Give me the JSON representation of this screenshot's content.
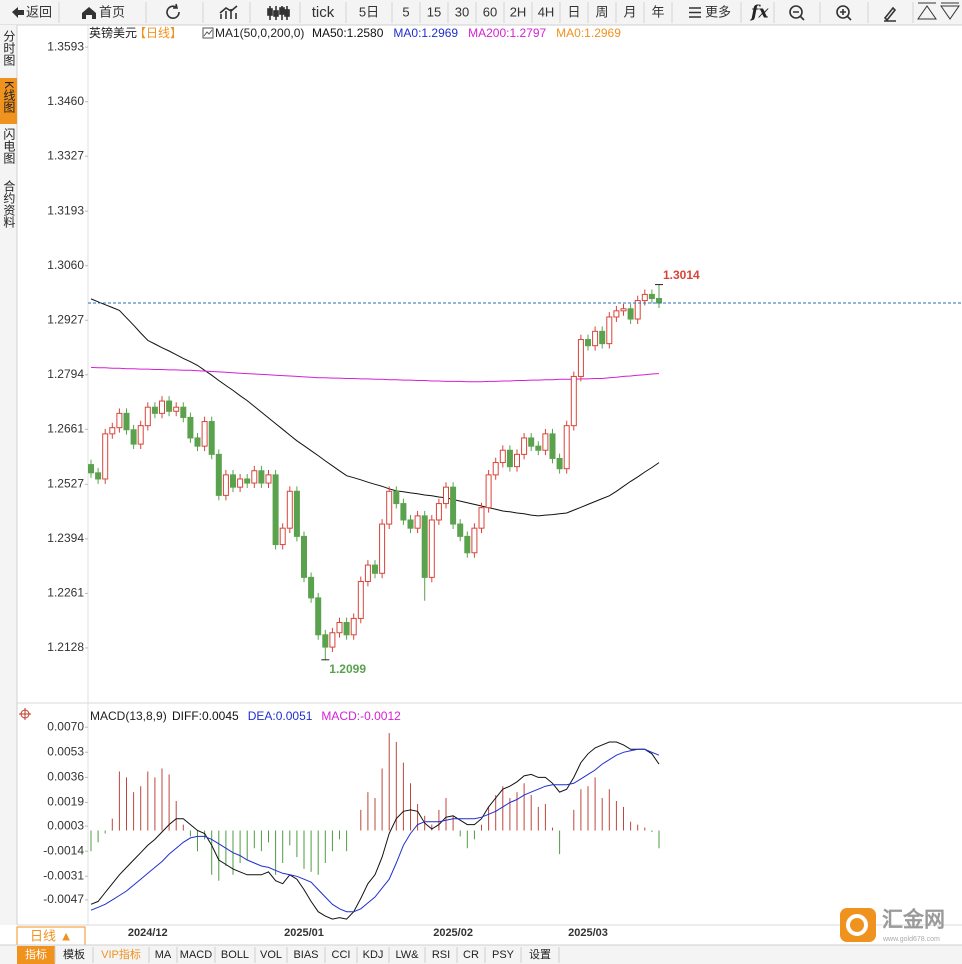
{
  "toolbar": [
    "返回",
    "首页",
    "tick",
    "5日",
    "5",
    "15",
    "30",
    "60",
    "2H",
    "4H",
    "日",
    "周",
    "月",
    "年",
    "更多"
  ],
  "sidebar": [
    "分时图",
    "K线图",
    "闪电图",
    "合约资料"
  ],
  "symbol": "英镑美元",
  "period": "【日线】",
  "period_button": "日线 ▲",
  "tabs": [
    "指标",
    "模板",
    "VIP指标",
    "MA",
    "MACD",
    "BOLL",
    "VOL",
    "BIAS",
    "CCI",
    "KDJ",
    "LW&",
    "RSI",
    "CR",
    "PSY",
    "设置"
  ],
  "watermark": {
    "name": "汇金网",
    "url": "www.gold678.com"
  },
  "chart_data": [
    {
      "type": "candlestick",
      "indicator": "MA1(50,0,200,0)",
      "legend_texts": [
        {
          "name": "MA0:1.2969",
          "color": "#1f2fd0"
        },
        {
          "name": "MA0:1.2969",
          "color": "#f0921e"
        }
      ],
      "up_color": "#d9443a",
      "down_color": "#5aa24d",
      "grid": false,
      "categories": [
        null,
        null,
        null,
        null,
        null,
        null,
        null,
        null,
        "2024/12",
        null,
        null,
        null,
        null,
        null,
        null,
        null,
        null,
        null,
        null,
        null,
        null,
        null,
        null,
        null,
        null,
        null,
        null,
        null,
        null,
        null,
        "2025/01",
        null,
        null,
        null,
        null,
        null,
        null,
        null,
        null,
        null,
        null,
        null,
        null,
        null,
        null,
        null,
        null,
        null,
        null,
        null,
        null,
        "2025/02",
        null,
        null,
        null,
        null,
        null,
        null,
        null,
        null,
        null,
        null,
        null,
        null,
        null,
        null,
        null,
        null,
        null,
        null,
        "2025/03",
        null,
        null,
        null,
        null,
        null,
        null,
        null,
        null,
        null,
        null
      ],
      "open": [
        1.2575,
        1.2555,
        1.254,
        1.265,
        1.2665,
        1.27,
        1.266,
        1.2625,
        1.267,
        1.2715,
        1.27,
        1.273,
        1.2705,
        1.2715,
        1.269,
        1.264,
        1.262,
        1.268,
        1.26,
        1.25,
        1.255,
        1.252,
        1.254,
        1.253,
        1.256,
        1.253,
        1.255,
        1.238,
        1.242,
        1.251,
        1.24,
        1.23,
        1.225,
        1.216,
        1.213,
        1.2165,
        1.219,
        1.216,
        1.22,
        1.229,
        1.233,
        1.231,
        1.243,
        1.251,
        1.248,
        1.244,
        1.242,
        1.245,
        1.23,
        1.244,
        1.248,
        1.252,
        1.243,
        1.24,
        1.236,
        1.242,
        1.247,
        1.255,
        1.258,
        1.261,
        1.257,
        1.26,
        1.264,
        1.262,
        1.261,
        1.265,
        1.259,
        1.2565,
        1.267,
        1.279,
        1.288,
        1.2865,
        1.29,
        1.287,
        1.2935,
        1.295,
        1.2955,
        1.293,
        1.2975,
        1.299,
        1.298
      ],
      "high": [
        1.2587,
        1.2567,
        1.2662,
        1.2677,
        1.2712,
        1.2712,
        1.2672,
        1.2682,
        1.2727,
        1.2727,
        1.2742,
        1.2742,
        1.2727,
        1.2727,
        1.2702,
        1.2652,
        1.2692,
        1.2692,
        1.2612,
        1.2562,
        1.2562,
        1.2552,
        1.2552,
        1.2572,
        1.2572,
        1.2562,
        1.2562,
        1.2432,
        1.2522,
        1.2522,
        1.2412,
        1.2312,
        1.2262,
        1.2172,
        1.2177,
        1.2202,
        1.2202,
        1.2212,
        1.2302,
        1.2342,
        1.2342,
        1.2442,
        1.2522,
        1.2522,
        1.2492,
        1.2452,
        1.2462,
        1.2462,
        1.2452,
        1.2492,
        1.2532,
        1.2532,
        1.2442,
        1.2412,
        1.2432,
        1.2482,
        1.2562,
        1.2592,
        1.2622,
        1.2622,
        1.2612,
        1.2652,
        1.2652,
        1.2632,
        1.2662,
        1.2662,
        1.2602,
        1.2682,
        1.2802,
        1.2892,
        1.2892,
        1.2912,
        1.2912,
        1.2947,
        1.2962,
        1.2967,
        1.2967,
        1.2987,
        1.3002,
        1.3002,
        1.3014
      ],
      "low": [
        1.2543,
        1.2528,
        1.2528,
        1.2638,
        1.2653,
        1.2648,
        1.2613,
        1.2613,
        1.2658,
        1.2688,
        1.2688,
        1.2693,
        1.2693,
        1.2678,
        1.2628,
        1.2608,
        1.2608,
        1.2588,
        1.2488,
        1.2488,
        1.2508,
        1.2508,
        1.2518,
        1.2518,
        1.2518,
        1.2518,
        1.2368,
        1.2368,
        1.2408,
        1.2388,
        1.2288,
        1.2238,
        1.2148,
        1.2099,
        1.2118,
        1.2153,
        1.2148,
        1.2148,
        1.2188,
        1.2278,
        1.2298,
        1.2298,
        1.2418,
        1.2468,
        1.2428,
        1.2408,
        1.2408,
        1.2243,
        1.2288,
        1.2428,
        1.2468,
        1.2418,
        1.2388,
        1.2348,
        1.2348,
        1.2408,
        1.2458,
        1.2538,
        1.2568,
        1.2558,
        1.2558,
        1.2588,
        1.2608,
        1.2598,
        1.2598,
        1.2578,
        1.2553,
        1.2553,
        1.2658,
        1.2778,
        1.2853,
        1.2853,
        1.2858,
        1.2858,
        1.2923,
        1.2938,
        1.2918,
        1.2918,
        1.2963,
        1.2968,
        1.2957
      ],
      "close": [
        1.2555,
        1.254,
        1.265,
        1.2665,
        1.27,
        1.266,
        1.2625,
        1.267,
        1.2715,
        1.27,
        1.273,
        1.2705,
        1.2715,
        1.269,
        1.264,
        1.262,
        1.268,
        1.26,
        1.25,
        1.255,
        1.252,
        1.254,
        1.253,
        1.256,
        1.253,
        1.255,
        1.238,
        1.242,
        1.251,
        1.24,
        1.23,
        1.225,
        1.216,
        1.213,
        1.2165,
        1.219,
        1.216,
        1.22,
        1.229,
        1.233,
        1.231,
        1.243,
        1.251,
        1.248,
        1.244,
        1.242,
        1.245,
        1.23,
        1.244,
        1.248,
        1.252,
        1.243,
        1.24,
        1.236,
        1.242,
        1.247,
        1.255,
        1.258,
        1.261,
        1.257,
        1.26,
        1.264,
        1.262,
        1.261,
        1.265,
        1.259,
        1.2565,
        1.267,
        1.279,
        1.288,
        1.2865,
        1.29,
        1.287,
        1.2935,
        1.295,
        1.2955,
        1.293,
        1.2975,
        1.299,
        1.298,
        1.2969
      ],
      "series": [
        {
          "name": "MA50:1.2580",
          "color": "#111111",
          "values": [
            1.2979,
            1.2972,
            1.2965,
            1.2958,
            1.2951,
            1.2933,
            1.2915,
            1.2896,
            1.2878,
            1.2869,
            1.286,
            1.2852,
            1.2843,
            1.2834,
            1.2826,
            1.2817,
            1.2805,
            1.2793,
            1.278,
            1.2768,
            1.2756,
            1.2743,
            1.2731,
            1.2717,
            1.2703,
            1.2689,
            1.2675,
            1.2661,
            1.2647,
            1.2633,
            1.2621,
            1.2609,
            1.2597,
            1.2584,
            1.2572,
            1.256,
            1.2548,
            1.2543,
            1.2538,
            1.2532,
            1.2527,
            1.2522,
            1.2516,
            1.2511,
            1.2509,
            1.2506,
            1.2504,
            1.2501,
            1.2499,
            1.2496,
            1.2494,
            1.249,
            1.2486,
            1.2482,
            1.2478,
            1.2474,
            1.247,
            1.2466,
            1.2462,
            1.246,
            1.2457,
            1.2455,
            1.2452,
            1.245,
            1.2452,
            1.2453,
            1.2455,
            1.2457,
            1.2464,
            1.2471,
            1.2478,
            1.2485,
            1.2492,
            1.2499,
            1.251,
            1.2522,
            1.2534,
            1.2545,
            1.2557,
            1.2568,
            1.258
          ]
        },
        {
          "name": "MA200:1.2797",
          "color": "#d61fd6",
          "values": [
            1.2812,
            1.2811,
            1.2811,
            1.281,
            1.281,
            1.2809,
            1.2809,
            1.2808,
            1.2808,
            1.2807,
            1.2807,
            1.2806,
            1.2806,
            1.2805,
            1.2805,
            1.2804,
            1.2803,
            1.2802,
            1.2801,
            1.28,
            1.2799,
            1.2798,
            1.2797,
            1.2796,
            1.2795,
            1.2794,
            1.2793,
            1.2792,
            1.2791,
            1.279,
            1.2789,
            1.2788,
            1.2787,
            1.2787,
            1.2786,
            1.2786,
            1.2785,
            1.2785,
            1.2784,
            1.2784,
            1.2783,
            1.2783,
            1.2782,
            1.2782,
            1.2781,
            1.2781,
            1.278,
            1.278,
            1.2779,
            1.2779,
            1.2778,
            1.2778,
            1.2778,
            1.2777,
            1.2777,
            1.2777,
            1.2778,
            1.2778,
            1.2779,
            1.2779,
            1.278,
            1.278,
            1.2781,
            1.2781,
            1.2782,
            1.2782,
            1.2783,
            1.2783,
            1.2783,
            1.2784,
            1.2784,
            1.2785,
            1.2785,
            1.2787,
            1.2788,
            1.279,
            1.2791,
            1.2793,
            1.2794,
            1.2796,
            1.2797
          ]
        }
      ],
      "ylim": [
        1.2001,
        1.3647
      ],
      "yticks": [
        1.3593,
        {
          "value": 1.346,
          "label": "1.3460"
        },
        1.3327,
        1.3193,
        {
          "value": 1.306,
          "label": "1.3060"
        },
        1.2927,
        1.2794,
        1.2661,
        1.2527,
        1.2394,
        1.2261,
        1.2128
      ]
    },
    {
      "type": "macd",
      "title": "MACD(13,8,9)",
      "grid": false,
      "series": [
        {
          "name": "DIFF:0.0045",
          "color": "#111111",
          "values": [
            -0.005,
            -0.0048,
            -0.0042,
            -0.0036,
            -0.003,
            -0.0025,
            -0.002,
            -0.0015,
            -0.001,
            -0.0006,
            -0.0001,
            0.0004,
            0.0008,
            0.0008,
            0.0004,
            0.0,
            -0.0002,
            -0.001,
            -0.002,
            -0.0023,
            -0.0026,
            -0.0028,
            -0.003,
            -0.003,
            -0.003,
            -0.0028,
            -0.0034,
            -0.0036,
            -0.003,
            -0.0033,
            -0.004,
            -0.0048,
            -0.0055,
            -0.0058,
            -0.006,
            -0.0059,
            -0.006,
            -0.0055,
            -0.0046,
            -0.0036,
            -0.003,
            -0.0018,
            -0.0002,
            0.0008,
            0.0013,
            0.0014,
            0.0013,
            0.0005,
            0.0001,
            0.0004,
            0.0009,
            0.001,
            0.0007,
            0.0004,
            0.0004,
            0.0008,
            0.0016,
            0.0022,
            0.0028,
            0.003,
            0.0033,
            0.0037,
            0.0038,
            0.0036,
            0.0036,
            0.0032,
            0.0026,
            0.0028,
            0.0036,
            0.0046,
            0.0052,
            0.0056,
            0.0058,
            0.006,
            0.006,
            0.0058,
            0.0055,
            0.0055,
            0.0055,
            0.0052,
            0.0045
          ]
        },
        {
          "name": "DEA:0.0051",
          "color": "#1f2fd0",
          "values": [
            -0.0054,
            -0.0052,
            -0.005,
            -0.0047,
            -0.0044,
            -0.0041,
            -0.0037,
            -0.0033,
            -0.0029,
            -0.0025,
            -0.0021,
            -0.0016,
            -0.0012,
            -0.0008,
            -0.0005,
            -0.0004,
            -0.0004,
            -0.0006,
            -0.0009,
            -0.0012,
            -0.0015,
            -0.0017,
            -0.002,
            -0.0022,
            -0.0024,
            -0.0025,
            -0.0027,
            -0.0029,
            -0.003,
            -0.0031,
            -0.0033,
            -0.0035,
            -0.004,
            -0.0045,
            -0.005,
            -0.0053,
            -0.0055,
            -0.0055,
            -0.0053,
            -0.0049,
            -0.0045,
            -0.0039,
            -0.0033,
            -0.0022,
            -0.001,
            -0.0002,
            0.0004,
            0.0006,
            0.0006,
            0.0006,
            0.0007,
            0.0008,
            0.0008,
            0.0008,
            0.0008,
            0.0009,
            0.0011,
            0.0013,
            0.0016,
            0.0019,
            0.0021,
            0.0024,
            0.0026,
            0.0028,
            0.003,
            0.0031,
            0.0031,
            0.0031,
            0.0032,
            0.0035,
            0.0038,
            0.0041,
            0.0045,
            0.0048,
            0.0051,
            0.0053,
            0.0054,
            0.0055,
            0.0055,
            0.0053,
            0.0051
          ]
        },
        {
          "name": "MACD:-0.0012",
          "color": "#d61fd6",
          "up_color": "#c0453c",
          "down_color": "#4e9c45",
          "bars": true,
          "values": [
            -0.0014,
            -0.0008,
            -0.0002,
            0.0008,
            0.004,
            0.0036,
            0.0026,
            0.003,
            0.004,
            0.0036,
            0.0042,
            0.0038,
            0.002,
            0.0004,
            -0.0004,
            -0.0014,
            -0.0006,
            -0.003,
            -0.0034,
            -0.0024,
            -0.003,
            -0.0022,
            -0.002,
            -0.0012,
            -0.0014,
            -0.0008,
            -0.003,
            -0.0022,
            -0.001,
            -0.0018,
            -0.0026,
            -0.0028,
            -0.003,
            -0.0022,
            -0.0014,
            -0.0006,
            -0.0014,
            0.0,
            0.0014,
            0.0026,
            0.0022,
            0.0042,
            0.0066,
            0.006,
            0.0046,
            0.0032,
            0.0018,
            0.001,
            0.0004,
            0.0014,
            0.0022,
            0.001,
            -0.0004,
            -0.0012,
            -0.0006,
            0.0004,
            0.0016,
            0.0024,
            0.003,
            0.0022,
            0.0026,
            0.0032,
            0.0024,
            0.0016,
            0.0018,
            0.0002,
            -0.0016,
            0.0,
            0.0014,
            0.0028,
            0.003,
            0.0036,
            0.0022,
            0.0028,
            0.002,
            0.0016,
            0.0006,
            0.0004,
            0.0002,
            -0.0001,
            -0.0012
          ]
        }
      ],
      "ylim": [
        -0.0064,
        0.0083
      ],
      "yticks": [
        {
          "value": 0.007,
          "label": "0.0070"
        },
        0.0053,
        0.0036,
        0.0019,
        0.0003,
        -0.0014,
        -0.0031,
        -0.0047
      ]
    }
  ]
}
